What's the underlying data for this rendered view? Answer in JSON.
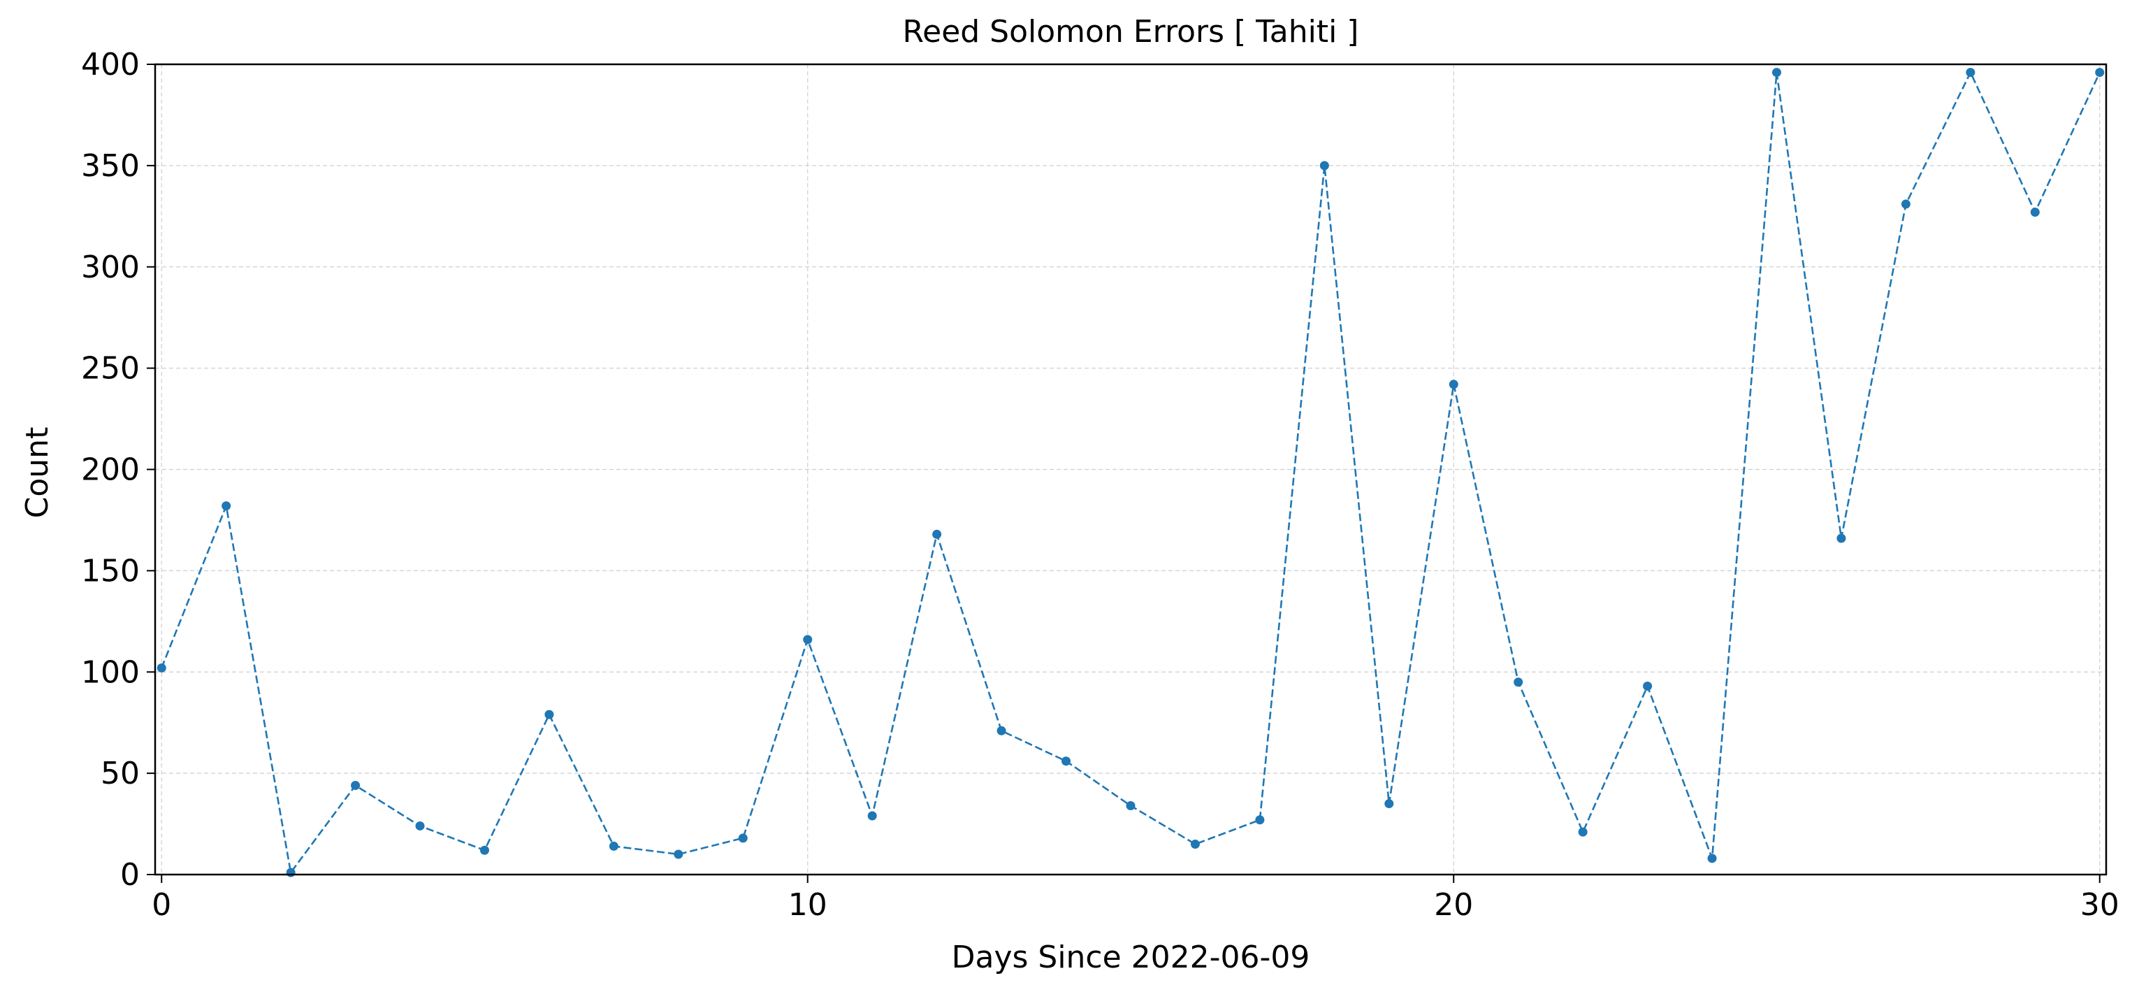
{
  "chart_data": {
    "type": "line",
    "title": "Reed Solomon Errors [ Tahiti ]",
    "xlabel": "Days Since 2022-06-09",
    "ylabel": "Count",
    "xlim": [
      -0.1,
      30.1
    ],
    "ylim": [
      0,
      400
    ],
    "xticks": [
      0,
      10,
      20,
      30
    ],
    "yticks": [
      0,
      50,
      100,
      150,
      200,
      250,
      300,
      350,
      400
    ],
    "grid": true,
    "line_style": "dashed",
    "marker": "circle",
    "color": "#1f77b4",
    "series": [
      {
        "x": [
          0,
          1,
          2,
          3,
          4,
          5,
          6,
          7,
          8,
          9,
          10,
          11,
          12,
          13,
          14,
          15,
          16,
          17,
          18,
          19,
          20,
          21,
          22,
          23,
          24,
          25,
          26,
          27,
          28,
          29,
          30
        ],
        "values": [
          102,
          182,
          1,
          44,
          24,
          12,
          79,
          14,
          10,
          18,
          116,
          29,
          168,
          71,
          56,
          34,
          15,
          27,
          350,
          35,
          242,
          95,
          21,
          93,
          8,
          396,
          166,
          331,
          396,
          327,
          396
        ]
      }
    ]
  }
}
